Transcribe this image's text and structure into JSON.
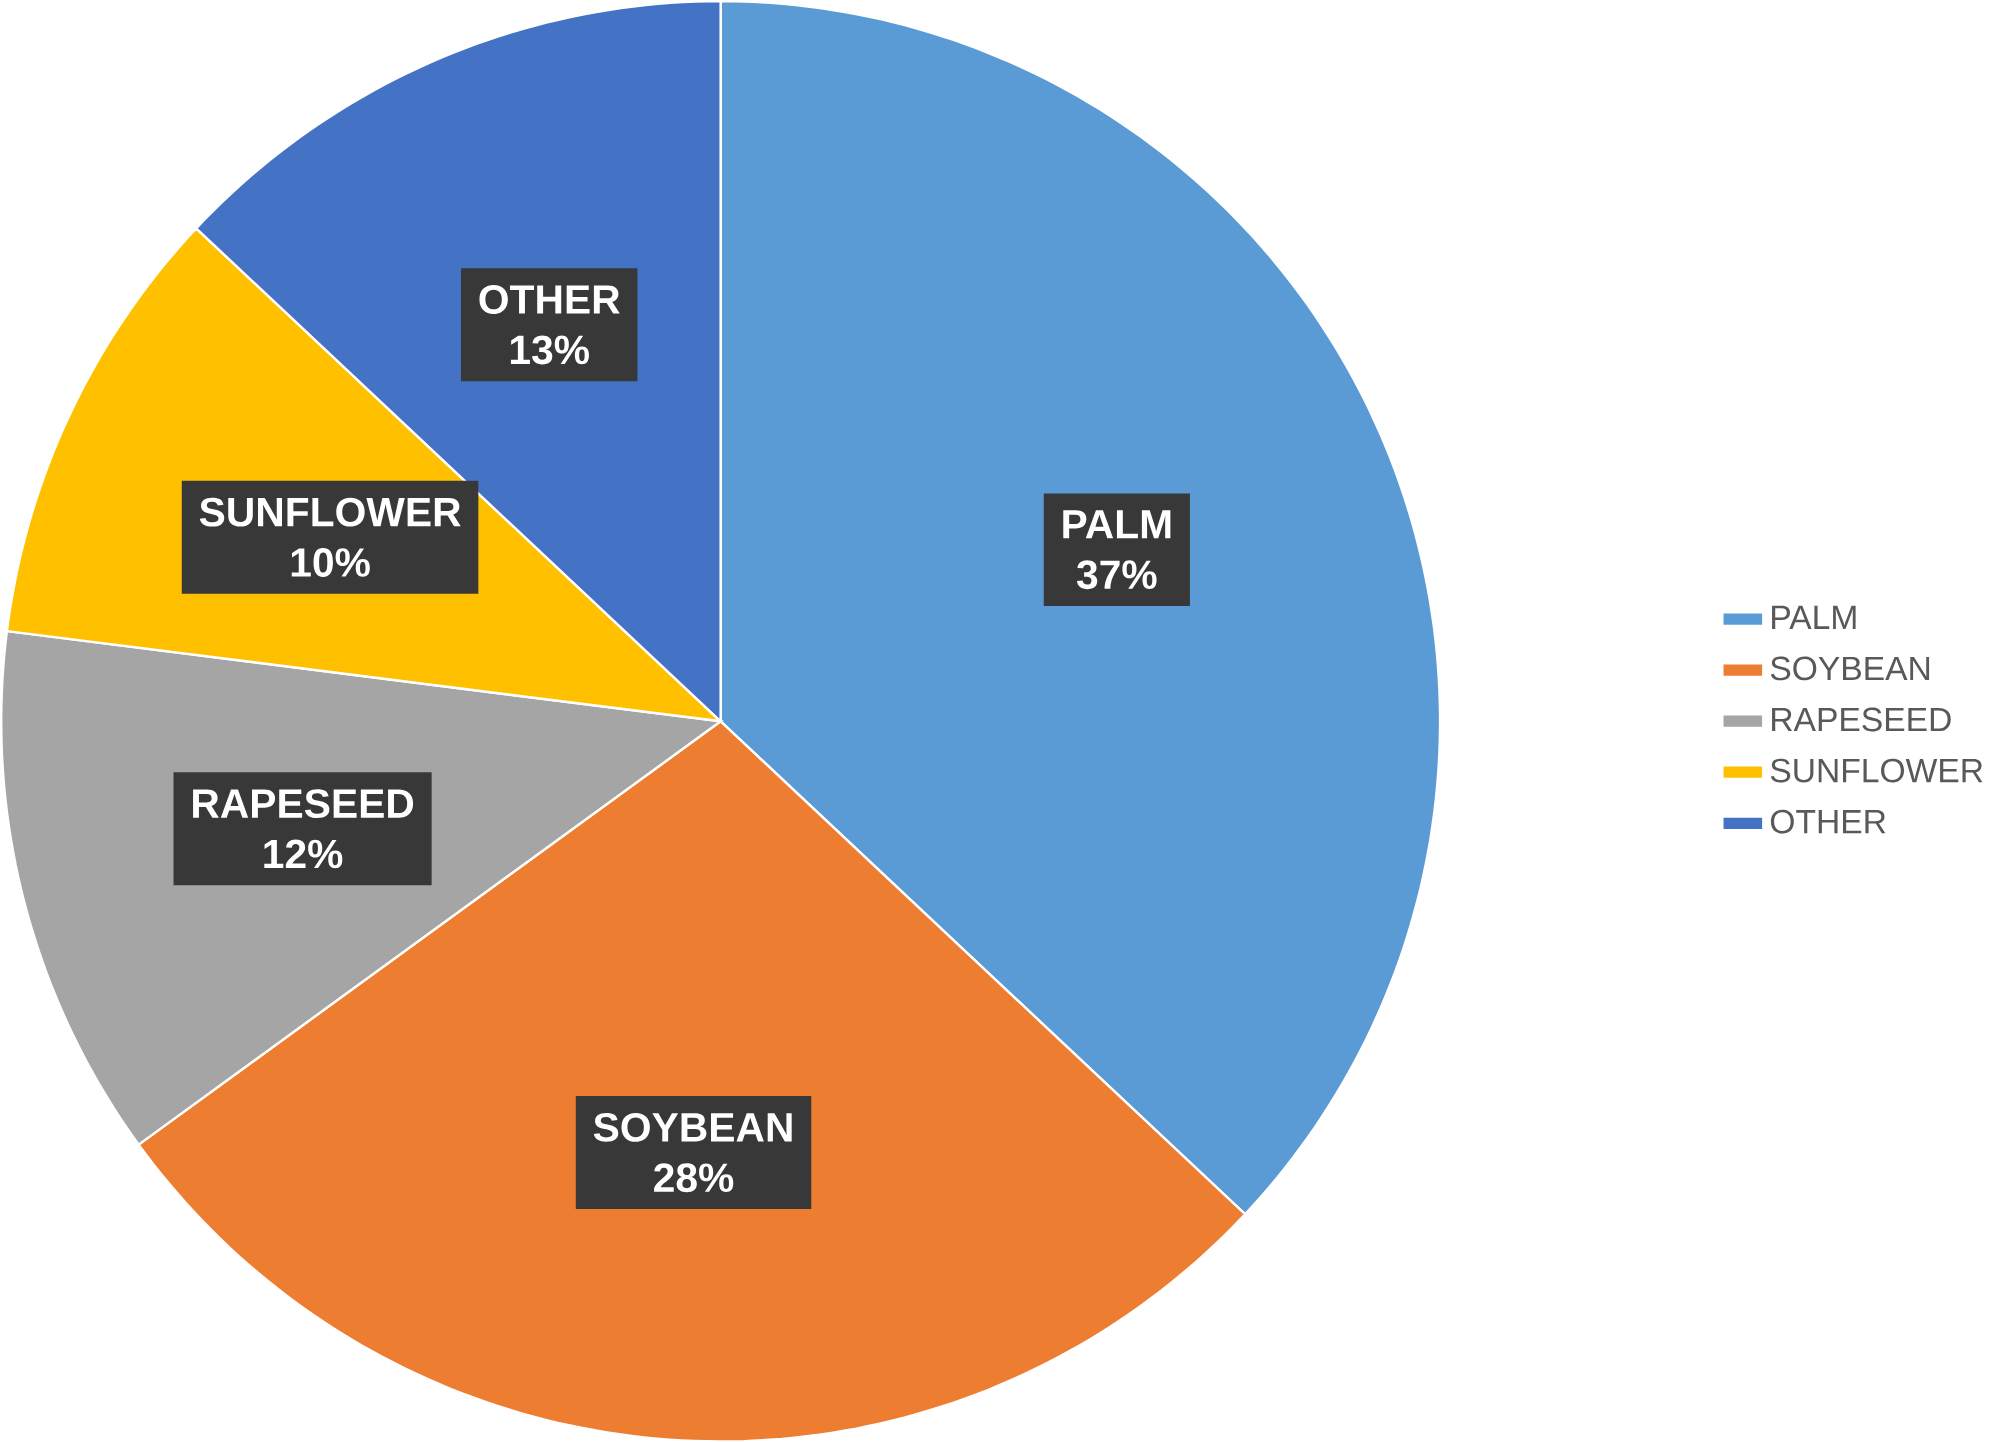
{
  "chart_data": {
    "type": "pie",
    "categories": [
      "PALM",
      "SOYBEAN",
      "RAPESEED",
      "SUNFLOWER",
      "OTHER"
    ],
    "values": [
      37,
      28,
      12,
      10,
      13
    ],
    "value_labels": [
      "37%",
      "28%",
      "12%",
      "10%",
      "13%"
    ],
    "colors": [
      "#5b9bd5",
      "#ed7d31",
      "#a5a5a5",
      "#ffc000",
      "#4472c4"
    ],
    "legend": "right"
  }
}
